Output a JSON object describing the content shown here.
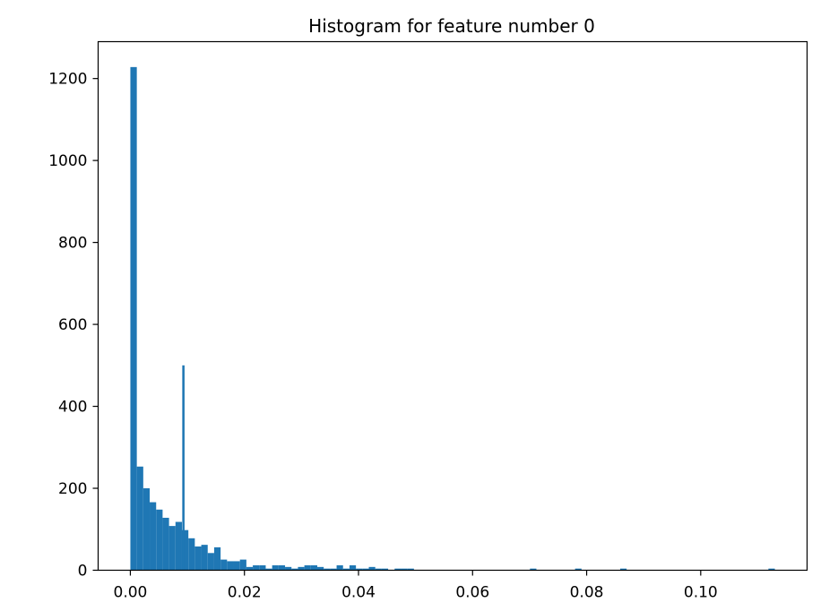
{
  "chart_data": {
    "type": "bar",
    "title": "Histogram for feature number 0",
    "xlabel": "",
    "ylabel": "",
    "xlim": [
      -0.00565,
      0.11865
    ],
    "ylim": [
      0,
      1290
    ],
    "xticks": [
      0.0,
      0.02,
      0.04,
      0.06,
      0.08,
      0.1
    ],
    "xtick_labels": [
      "0.00",
      "0.02",
      "0.04",
      "0.06",
      "0.08",
      "0.10"
    ],
    "yticks": [
      0,
      200,
      400,
      600,
      800,
      1000,
      1200
    ],
    "ytick_labels": [
      "0",
      "200",
      "400",
      "600",
      "800",
      "1000",
      "1200"
    ],
    "bin_start": 0.0,
    "bin_width": 0.00113,
    "counts": [
      1228,
      253,
      200,
      166,
      148,
      128,
      108,
      118,
      98,
      78,
      58,
      62,
      42,
      56,
      26,
      22,
      22,
      26,
      8,
      12,
      12,
      4,
      12,
      12,
      8,
      4,
      8,
      12,
      12,
      8,
      4,
      4,
      12,
      4,
      12,
      4,
      4,
      8,
      4,
      4,
      0,
      4,
      4,
      4,
      0,
      0,
      0,
      0,
      0,
      0,
      0,
      0,
      0,
      0,
      0,
      0,
      0,
      0,
      0,
      0,
      0,
      0,
      4,
      0,
      0,
      0,
      0,
      0,
      0,
      4,
      0,
      0,
      0,
      0,
      0,
      0,
      4,
      0,
      0,
      0,
      0,
      0,
      0,
      0,
      0,
      0,
      0,
      0,
      0,
      0,
      0,
      0,
      0,
      0,
      0,
      0,
      0,
      0,
      0,
      4
    ],
    "spike": {
      "x": 0.0093,
      "width": 0.0004,
      "value": 500
    },
    "bar_color": "#1f77b4",
    "grid": false,
    "legend": "none"
  }
}
